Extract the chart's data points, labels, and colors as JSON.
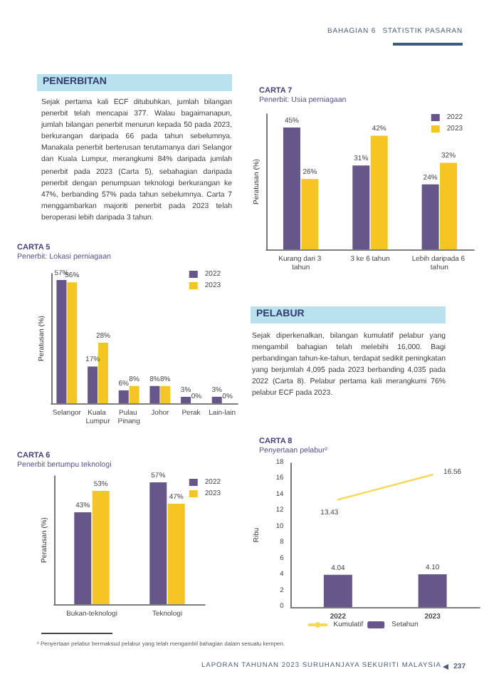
{
  "chart_data": [
    {
      "type": "other",
      "annotations": [
        "BAHAGIAN 6",
        "STATISTIK PASARAN"
      ]
    },
    {
      "type": "other",
      "title": "PENERBITAN",
      "annotations": [
        "Sejak pertama kali ECF ditubuhkan, jumlah bilangan penerbit telah mencapai 377. Walau bagaimanapun, jumlah bilangan penerbit menurun kepada 50 pada 2023, berkurangan daripada 66 pada tahun sebelumnya. Manakala penerbit berterusan terutamanya dari Selangor dan Kuala Lumpur, merangkumi 84% daripada jumlah penerbit pada 2023 (Carta 5), sebahagian daripada penerbit dengan penumpuan teknologi berkurangan ke 47%, berbanding 57% pada tahun sebelumnya. Carta 7 menggambarkan majoriti penerbit pada 2023 telah beroperasi lebih daripada 3 tahun."
      ]
    },
    {
      "type": "bar",
      "title": "CARTA 7",
      "subtitle": "Penerbit: Usia perniagaan",
      "ylabel": "Peratusan (%)",
      "categories": [
        "Kurang dari 3 tahun",
        "3 ke 6 tahun",
        "Lebih daripada 6 tahun"
      ],
      "series": [
        {
          "name": "2022",
          "color": "#66568a",
          "values": [
            45,
            31,
            24
          ],
          "value_labels": [
            "45%",
            "31%",
            "24%"
          ]
        },
        {
          "name": "2023",
          "color": "#f5c623",
          "values": [
            26,
            42,
            32
          ],
          "value_labels": [
            "26%",
            "42%",
            "32%"
          ]
        }
      ],
      "legend": "top right",
      "tick_labels": "x"
    },
    {
      "type": "bar",
      "title": "CARTA 5",
      "subtitle": "Penerbit: Lokasi perniagaan",
      "ylabel": "Peratusan (%)",
      "categories": [
        "Selangor",
        "Kuala Lumpur",
        "Pulau Pinang",
        "Johor",
        "Perak",
        "Lain-lain"
      ],
      "series": [
        {
          "name": "2022",
          "color": "#66568a",
          "values": [
            57,
            17,
            6,
            8,
            3,
            3
          ],
          "value_labels": [
            "57%",
            "17%",
            "6%",
            "8%",
            "3%",
            "3%"
          ]
        },
        {
          "name": "2023",
          "color": "#f5c623",
          "values": [
            56,
            28,
            8,
            8,
            0,
            0
          ],
          "value_labels": [
            "56%",
            "28%",
            "8%",
            "8%",
            "0%",
            "0%"
          ]
        }
      ],
      "legend": "top right",
      "tick_labels": "x"
    },
    {
      "type": "other",
      "title": "PELABUR",
      "annotations": [
        "Sejak diperkenalkan, bilangan kumulatif pelabur yang mengambil bahagian telah melebihi 16,000. Bagi perbandingan tahun-ke-tahun, terdapat sedikit peningkatan yang berjumlah 4,095 pada 2023 berbanding 4,035 pada 2022 (Carta 8). Pelabur pertama kali merangkumi 76% pelabur ECF pada 2023."
      ]
    },
    {
      "type": "bar",
      "title": "CARTA 6",
      "subtitle": "Penerbit bertumpu teknologi",
      "ylabel": "Peratusan (%)",
      "categories": [
        "Bukan-teknologi",
        "Teknologi"
      ],
      "series": [
        {
          "name": "2022",
          "color": "#66568a",
          "values": [
            43,
            57
          ],
          "value_labels": [
            "43%",
            "57%"
          ]
        },
        {
          "name": "2023",
          "color": "#f5c623",
          "values": [
            53,
            47
          ],
          "value_labels": [
            "53%",
            "47%"
          ]
        }
      ],
      "legend": "top right",
      "tick_labels": "x"
    },
    {
      "type": "bar",
      "title": "CARTA 8",
      "subtitle": "Penyertaan pelabur²",
      "ylabel": "Ribu",
      "categories": [
        "2022",
        "2023"
      ],
      "series": [
        {
          "name": "Kumulatif",
          "type": "line",
          "color": "#f7d95a",
          "values": [
            13.43,
            16.56
          ],
          "value_labels": [
            "13.43",
            "16.56"
          ]
        },
        {
          "name": "Setahun",
          "color": "#66568a",
          "values": [
            4.04,
            4.1
          ],
          "value_labels": [
            "4.04",
            "4.10"
          ]
        }
      ],
      "ylim": [
        0,
        18
      ],
      "yticks": [
        0,
        2,
        4,
        6,
        8,
        10,
        12,
        14,
        16,
        18
      ],
      "legend": "bottom",
      "marker": "none"
    },
    {
      "type": "other",
      "annotations": [
        "² Penyertaan pelabur bermaksud pelabur yang telah mengambil bahagian dalam sesuatu kempen.",
        "LAPORAN TAHUNAN 2023 SURUHANJAYA SEKURITI MALAYSIA",
        "237"
      ]
    }
  ]
}
